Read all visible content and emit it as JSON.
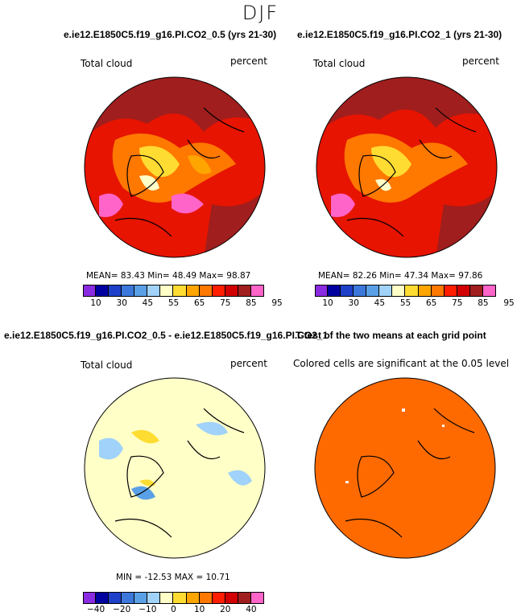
{
  "season": "DJF",
  "panels": {
    "top_left": {
      "case": "e.ie12.E1850C5.f19_g16.PI.CO2_0.5 (yrs 21-30)",
      "var_label": "Total cloud",
      "units": "percent",
      "stats": "MEAN=  83.43   Min=  48.49   Max=  98.87"
    },
    "top_right": {
      "case": "e.ie12.E1850C5.f19_g16.PI.CO2_1 (yrs 21-30)",
      "var_label": "Total cloud",
      "units": "percent",
      "stats": "MEAN=  82.26   Min=  47.34   Max=  97.86"
    },
    "bottom_left": {
      "case": "e.ie12.E1850C5.f19_g16.PI.CO2_0.5 - e.ie12.E1850C5.f19_g16.PI.CO2_1",
      "var_label": "Total cloud",
      "units": "percent",
      "stats": "MIN = -12.53  MAX =  10.71"
    },
    "bottom_right": {
      "case": "T-test of the two means at each grid point",
      "note": "Colored cells are significant at the 0.05 level"
    }
  },
  "colorbars": {
    "abs": {
      "colors": [
        "#8a2be2",
        "#0000a0",
        "#1e40c8",
        "#3c78dc",
        "#5aa0e6",
        "#a0d2fa",
        "#ffffc8",
        "#ffdc32",
        "#ffa500",
        "#ff7800",
        "#ff1e00",
        "#d20000",
        "#a01e1e",
        "#ff64c8"
      ],
      "tick_labels": [
        "10",
        "30",
        "45",
        "55",
        "65",
        "75",
        "85",
        "95"
      ]
    },
    "diff": {
      "colors": [
        "#8a2be2",
        "#0000a0",
        "#1e40c8",
        "#3c78dc",
        "#5aa0e6",
        "#a0d2fa",
        "#ffffc8",
        "#ffdc32",
        "#ffa500",
        "#ff7800",
        "#ff1e00",
        "#d20000",
        "#a01e1e",
        "#ff64c8"
      ],
      "tick_labels": [
        "−40",
        "−20",
        "−10",
        "0",
        "10",
        "20",
        "40"
      ]
    }
  },
  "map_colors": {
    "cloud_dark": "#a01e1e",
    "cloud_red": "#e61400",
    "cloud_orange": "#ff7800",
    "cloud_yellow": "#ffdc32",
    "diff_bg": "#ffffc8",
    "diff_blue": "#a0d2fa",
    "ttest": "#ff6a00"
  }
}
